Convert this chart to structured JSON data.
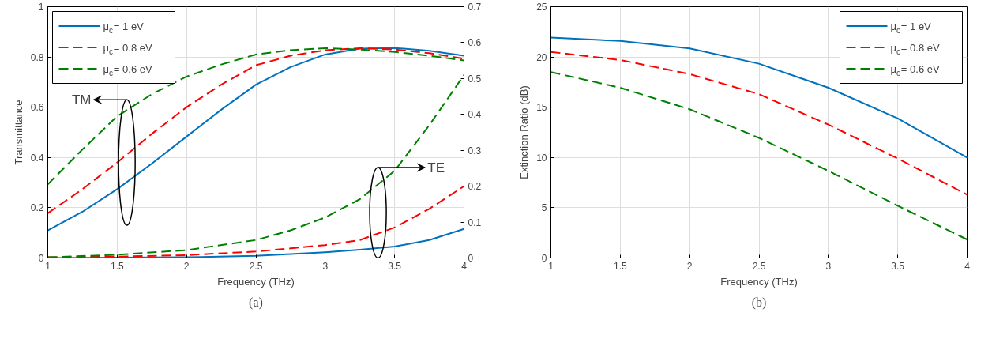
{
  "chart_data": [
    {
      "type": "line",
      "xlabel": "Frequency (THz)",
      "ylabel": "Transmittance",
      "x": [
        1,
        1.25,
        1.5,
        1.75,
        2,
        2.25,
        2.5,
        2.75,
        3,
        3.25,
        3.5,
        3.75,
        4
      ],
      "series": [
        {
          "name": "μ$_{c}$= 1 eV",
          "color": "#0072bd",
          "line_style": "solid",
          "values": [
            0.11,
            0.184,
            0.274,
            0.376,
            0.483,
            0.59,
            0.69,
            0.76,
            0.81,
            0.833,
            0.836,
            0.825,
            0.805
          ]
        },
        {
          "name": "μ$_{c}$= 0.8 eV",
          "color": "#ff0000",
          "line_style": "dashed",
          "values": [
            0.178,
            0.274,
            0.38,
            0.494,
            0.6,
            0.69,
            0.767,
            0.805,
            0.827,
            0.835,
            0.83,
            0.815,
            0.793
          ]
        },
        {
          "name": "μ$_{c}$= 0.6 eV",
          "color": "#008000",
          "line_style": "dashed",
          "values": [
            0.293,
            0.432,
            0.564,
            0.652,
            0.722,
            0.77,
            0.81,
            0.827,
            0.835,
            0.83,
            0.82,
            0.805,
            0.786
          ]
        },
        {
          "color": "#0072bd",
          "line_style": "solid",
          "axis": "y2",
          "x": [
            1,
            1.5,
            2,
            2.5,
            3,
            3.25,
            3.5,
            3.75,
            4
          ],
          "values": [
            0,
            0.001,
            0.002,
            0.006,
            0.016,
            0.023,
            0.032,
            0.05,
            0.081
          ]
        },
        {
          "color": "#ff0000",
          "line_style": "dashed",
          "axis": "y2",
          "x": [
            1,
            1.5,
            2,
            2.5,
            3,
            3.25,
            3.5,
            3.75,
            4
          ],
          "values": [
            0.002,
            0.004,
            0.008,
            0.018,
            0.036,
            0.05,
            0.085,
            0.137,
            0.2
          ]
        },
        {
          "color": "#008000",
          "line_style": "dashed",
          "axis": "y2",
          "x": [
            1,
            1.5,
            2,
            2.5,
            2.75,
            3,
            3.25,
            3.5,
            3.75,
            4
          ],
          "values": [
            0.002,
            0.009,
            0.022,
            0.05,
            0.077,
            0.113,
            0.164,
            0.243,
            0.37,
            0.51
          ]
        }
      ],
      "xlim": [
        1,
        4
      ],
      "xticks": [
        1,
        1.5,
        2,
        2.5,
        3,
        3.5,
        4
      ],
      "ylim": [
        0,
        1
      ],
      "yticks": [
        0,
        0.2,
        0.4,
        0.6,
        0.8,
        1
      ],
      "y2lim": [
        0,
        0.7
      ],
      "y2ticks": [
        0,
        0.1,
        0.2,
        0.3,
        0.4,
        0.5,
        0.6,
        0.7
      ],
      "grid": true,
      "legend": "top left",
      "annotations": [
        "TM",
        "TE",
        "(a)"
      ]
    },
    {
      "type": "line",
      "xlabel": "Frequency (THz)",
      "ylabel": "Extinction Ratio (dB)",
      "x": [
        1,
        1.5,
        2,
        2.5,
        3,
        3.5,
        4
      ],
      "series": [
        {
          "name": "μ$_{c}$= 1 eV",
          "color": "#0072bd",
          "line_style": "solid",
          "values": [
            21.93,
            21.6,
            20.86,
            19.33,
            16.94,
            13.88,
            9.99
          ]
        },
        {
          "name": "μ$_{c}$= 0.8 eV",
          "color": "#ff0000",
          "line_style": "dashed",
          "values": [
            20.5,
            19.7,
            18.3,
            16.3,
            13.27,
            9.9,
            6.3
          ]
        },
        {
          "name": "μ$_{c}$= 0.6 eV",
          "color": "#008000",
          "line_style": "dashed",
          "values": [
            18.5,
            16.94,
            14.8,
            11.95,
            8.67,
            5.2,
            1.84
          ]
        }
      ],
      "xlim": [
        1,
        4
      ],
      "xticks": [
        1,
        1.5,
        2,
        2.5,
        3,
        3.5,
        4
      ],
      "ylim": [
        0,
        25
      ],
      "yticks": [
        0,
        5,
        10,
        15,
        20,
        25
      ],
      "grid": true,
      "legend": "top right",
      "annotations": [
        "(b)"
      ]
    }
  ]
}
